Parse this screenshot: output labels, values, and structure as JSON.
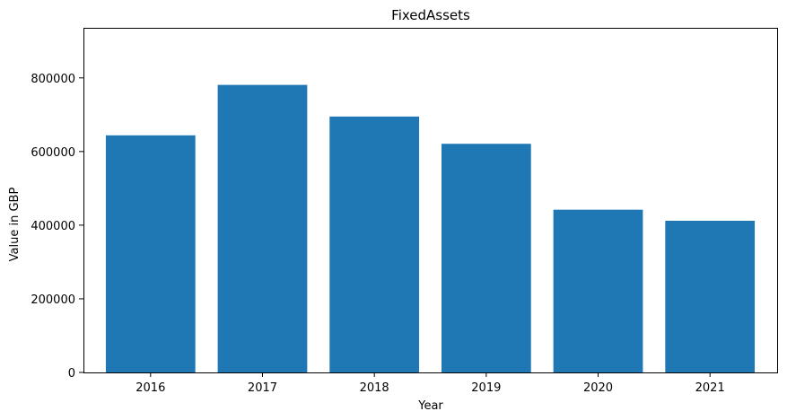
{
  "chart_data": {
    "type": "bar",
    "title": "FixedAssets",
    "xlabel": "Year",
    "ylabel": "Value in GBP",
    "categories": [
      "2016",
      "2017",
      "2018",
      "2019",
      "2020",
      "2021"
    ],
    "values": [
      644000,
      781000,
      695000,
      621000,
      442000,
      412000
    ],
    "ylim": [
      0,
      936000
    ],
    "yticks": [
      0,
      200000,
      400000,
      600000,
      800000
    ],
    "ytick_labels": [
      "0",
      "200000",
      "400000",
      "600000",
      "800000"
    ],
    "grid": false,
    "bar_color": "#1f77b4"
  }
}
